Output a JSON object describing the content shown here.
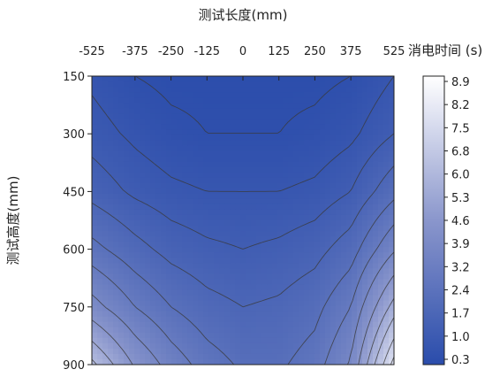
{
  "chart_data": {
    "type": "heatmap",
    "title": "",
    "xlabel": "测试长度(mm)",
    "ylabel": "测试高度(mm)",
    "colorbar_label": "消电时间 (s)",
    "x_ticks": [
      "-525",
      "-375",
      "-250",
      "-125",
      "0",
      "125",
      "250",
      "375",
      "525"
    ],
    "x_tick_values": [
      -525,
      -375,
      -250,
      -125,
      0,
      125,
      250,
      375,
      525
    ],
    "y_ticks": [
      "150",
      "300",
      "450",
      "600",
      "750",
      "900"
    ],
    "y_tick_values": [
      150,
      300,
      450,
      600,
      750,
      900
    ],
    "xlim": [
      -525,
      525
    ],
    "ylim": [
      150,
      900
    ],
    "y_axis_inverted": true,
    "colorbar_ticks": [
      "8.9",
      "8.2",
      "7.5",
      "6.8",
      "6.0",
      "5.3",
      "4.6",
      "3.9",
      "3.2",
      "2.4",
      "1.7",
      "1.0",
      "0.3"
    ],
    "colorbar_range": [
      0.3,
      8.9
    ],
    "colormap": {
      "low": "#2a4cab",
      "mid": "#8a96cc",
      "high": "#ffffff"
    },
    "x": [
      -525,
      -375,
      -250,
      -125,
      0,
      125,
      250,
      375,
      525
    ],
    "y": [
      150,
      300,
      450,
      600,
      750,
      900
    ],
    "z": [
      [
        0.8,
        0.5,
        0.4,
        0.4,
        0.4,
        0.4,
        0.4,
        0.5,
        0.9
      ],
      [
        1.1,
        0.8,
        0.6,
        0.5,
        0.5,
        0.5,
        0.6,
        0.8,
        1.3
      ],
      [
        1.6,
        1.2,
        1.0,
        0.9,
        0.9,
        0.9,
        1.0,
        1.3,
        2.2
      ],
      [
        2.6,
        2.0,
        1.6,
        1.4,
        1.3,
        1.4,
        1.6,
        2.1,
        3.6
      ],
      [
        4.0,
        3.0,
        2.4,
        2.0,
        1.8,
        1.9,
        2.2,
        3.0,
        5.6
      ],
      [
        6.2,
        4.4,
        3.4,
        2.7,
        2.3,
        2.3,
        2.7,
        3.8,
        7.8
      ]
    ],
    "contour_levels": [
      0.5,
      0.9,
      1.3,
      1.8,
      2.4,
      3.0,
      3.7,
      4.5,
      5.3,
      6.0,
      6.8,
      7.5
    ]
  }
}
